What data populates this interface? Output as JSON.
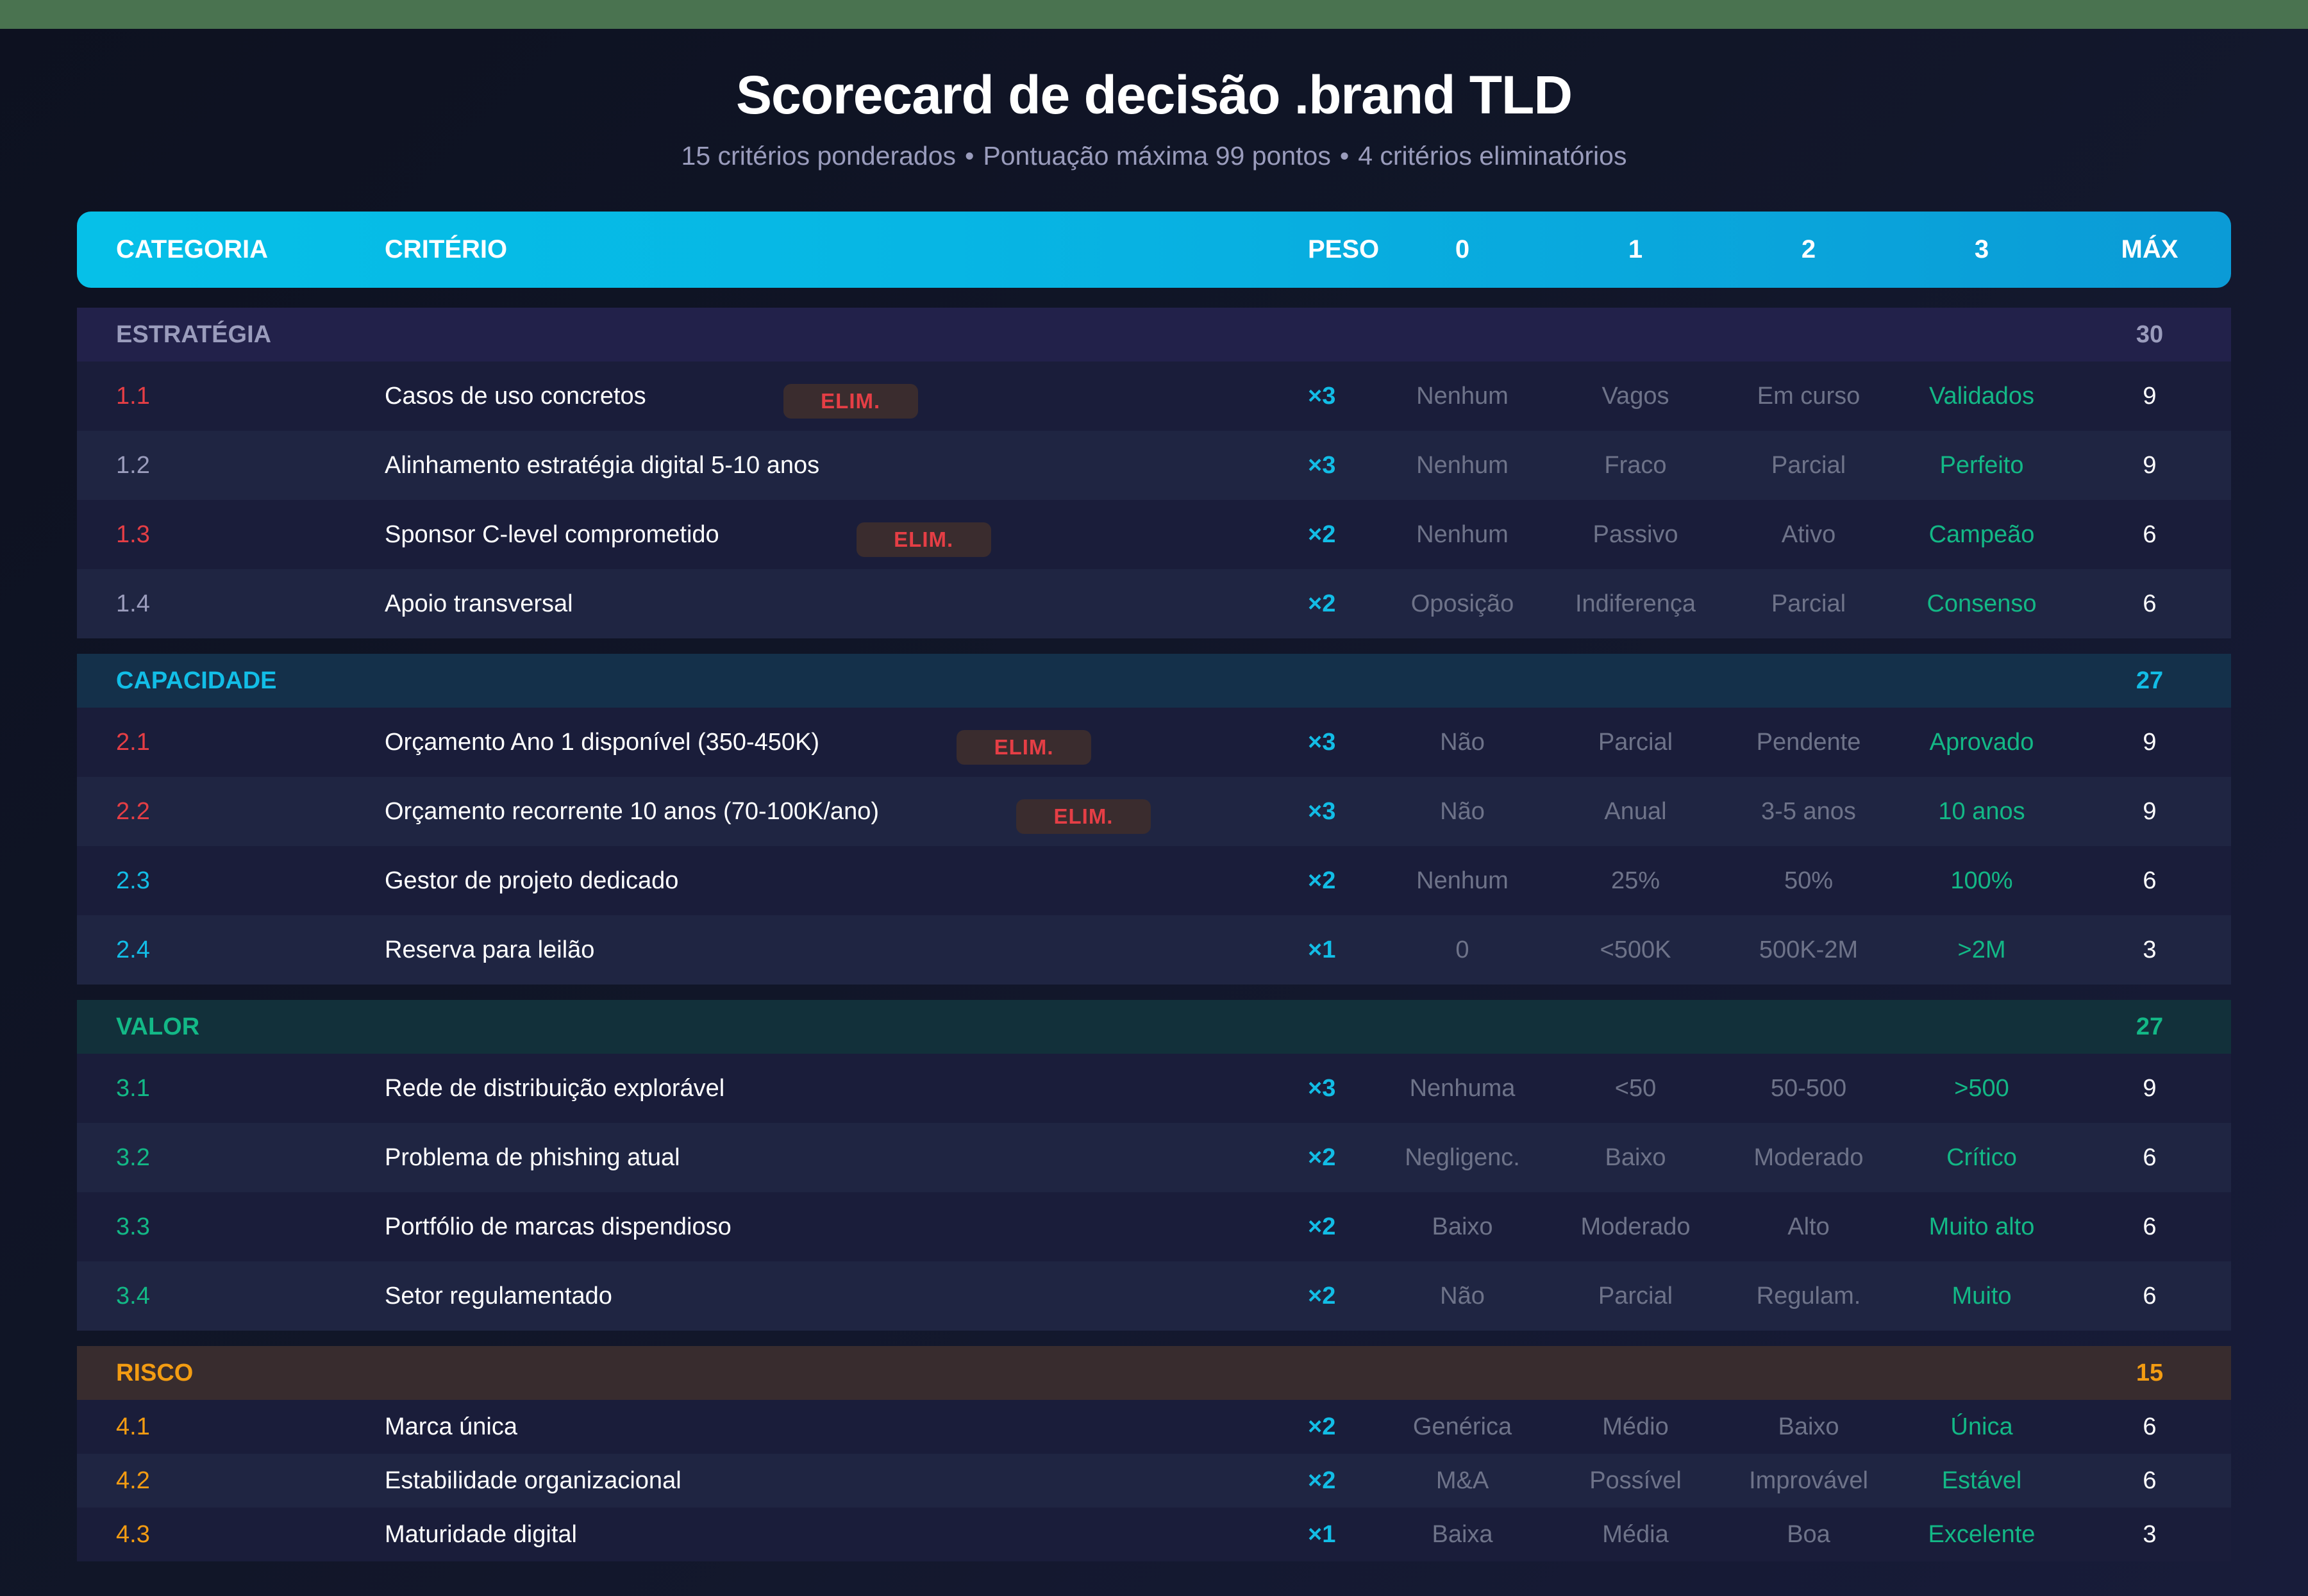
{
  "title": "Scorecard de decisão .brand TLD",
  "subtitle": {
    "part1": "15 critérios ponderados",
    "sep": "•",
    "part2": "Pontuação máxima 99 pontos",
    "part3": "4 critérios eliminatórios"
  },
  "colors": {
    "topbar": "#4a7350",
    "header_start": "#06c0e8",
    "header_end": "#0b9bd6",
    "eliminatory": "#e53e45",
    "weight": "#12bde6",
    "best_option": "#13b886",
    "option": "#6e7389"
  },
  "table": {
    "headers": {
      "category": "CATEGORIA",
      "criterion": "CRITÉRIO",
      "weight": "PESO",
      "s0": "0",
      "s1": "1",
      "s2": "2",
      "s3": "3",
      "max": "MÁX"
    },
    "badge_label": "ELIM.",
    "groups": [
      {
        "name": "ESTRATÉGIA",
        "total": "30",
        "color": "#9a9cbc",
        "bg": "#22214a",
        "rows": [
          {
            "id": "1.1",
            "criterion": "Casos de uso concretos",
            "elim": true,
            "weight": "×3",
            "s0": "Nenhum",
            "s1": "Vagos",
            "s2": "Em curso",
            "s3": "Validados",
            "max": "9"
          },
          {
            "id": "1.2",
            "criterion": "Alinhamento estratégia digital 5-10 anos",
            "elim": false,
            "weight": "×3",
            "s0": "Nenhum",
            "s1": "Fraco",
            "s2": "Parcial",
            "s3": "Perfeito",
            "max": "9"
          },
          {
            "id": "1.3",
            "criterion": "Sponsor C-level comprometido",
            "elim": true,
            "weight": "×2",
            "s0": "Nenhum",
            "s1": "Passivo",
            "s2": "Ativo",
            "s3": "Campeão",
            "max": "6"
          },
          {
            "id": "1.4",
            "criterion": "Apoio transversal",
            "elim": false,
            "weight": "×2",
            "s0": "Oposição",
            "s1": "Indiferença",
            "s2": "Parcial",
            "s3": "Consenso",
            "max": "6"
          }
        ]
      },
      {
        "name": "CAPACIDADE",
        "total": "27",
        "color": "#12bde6",
        "bg": "#14304a",
        "rows": [
          {
            "id": "2.1",
            "criterion": "Orçamento Ano 1 disponível (350-450K)",
            "elim": true,
            "weight": "×3",
            "s0": "Não",
            "s1": "Parcial",
            "s2": "Pendente",
            "s3": "Aprovado",
            "max": "9"
          },
          {
            "id": "2.2",
            "criterion": "Orçamento recorrente 10 anos (70-100K/ano)",
            "elim": true,
            "weight": "×3",
            "s0": "Não",
            "s1": "Anual",
            "s2": "3-5 anos",
            "s3": "10 anos",
            "max": "9"
          },
          {
            "id": "2.3",
            "criterion": "Gestor de projeto dedicado",
            "elim": false,
            "weight": "×2",
            "s0": "Nenhum",
            "s1": "25%",
            "s2": "50%",
            "s3": "100%",
            "max": "6"
          },
          {
            "id": "2.4",
            "criterion": "Reserva para leilão",
            "elim": false,
            "weight": "×1",
            "s0": "0",
            "s1": "<500K",
            "s2": "500K-2M",
            "s3": ">2M",
            "max": "3"
          }
        ]
      },
      {
        "name": "VALOR",
        "total": "27",
        "color": "#13b886",
        "bg": "#12303a",
        "rows": [
          {
            "id": "3.1",
            "criterion": "Rede de distribuição explorável",
            "elim": false,
            "weight": "×3",
            "s0": "Nenhuma",
            "s1": "<50",
            "s2": "50-500",
            "s3": ">500",
            "max": "9"
          },
          {
            "id": "3.2",
            "criterion": "Problema de phishing atual",
            "elim": false,
            "weight": "×2",
            "s0": "Negligenc.",
            "s1": "Baixo",
            "s2": "Moderado",
            "s3": "Crítico",
            "max": "6"
          },
          {
            "id": "3.3",
            "criterion": "Portfólio de marcas dispendioso",
            "elim": false,
            "weight": "×2",
            "s0": "Baixo",
            "s1": "Moderado",
            "s2": "Alto",
            "s3": "Muito alto",
            "max": "6"
          },
          {
            "id": "3.4",
            "criterion": "Setor regulamentado",
            "elim": false,
            "weight": "×2",
            "s0": "Não",
            "s1": "Parcial",
            "s2": "Regulam.",
            "s3": "Muito",
            "max": "6"
          }
        ]
      },
      {
        "name": "RISCO",
        "total": "15",
        "color": "#f39c12",
        "bg": "#382c2e",
        "rows": [
          {
            "id": "4.1",
            "criterion": "Marca única",
            "elim": false,
            "weight": "×2",
            "s0": "Genérica",
            "s1": "Médio",
            "s2": "Baixo",
            "s3": "Única",
            "max": "6"
          },
          {
            "id": "4.2",
            "criterion": "Estabilidade organizacional",
            "elim": false,
            "weight": "×2",
            "s0": "M&A",
            "s1": "Possível",
            "s2": "Improvável",
            "s3": "Estável",
            "max": "6"
          },
          {
            "id": "4.3",
            "criterion": "Maturidade digital",
            "elim": false,
            "weight": "×1",
            "s0": "Baixa",
            "s1": "Média",
            "s2": "Boa",
            "s3": "Excelente",
            "max": "3"
          }
        ]
      }
    ]
  }
}
